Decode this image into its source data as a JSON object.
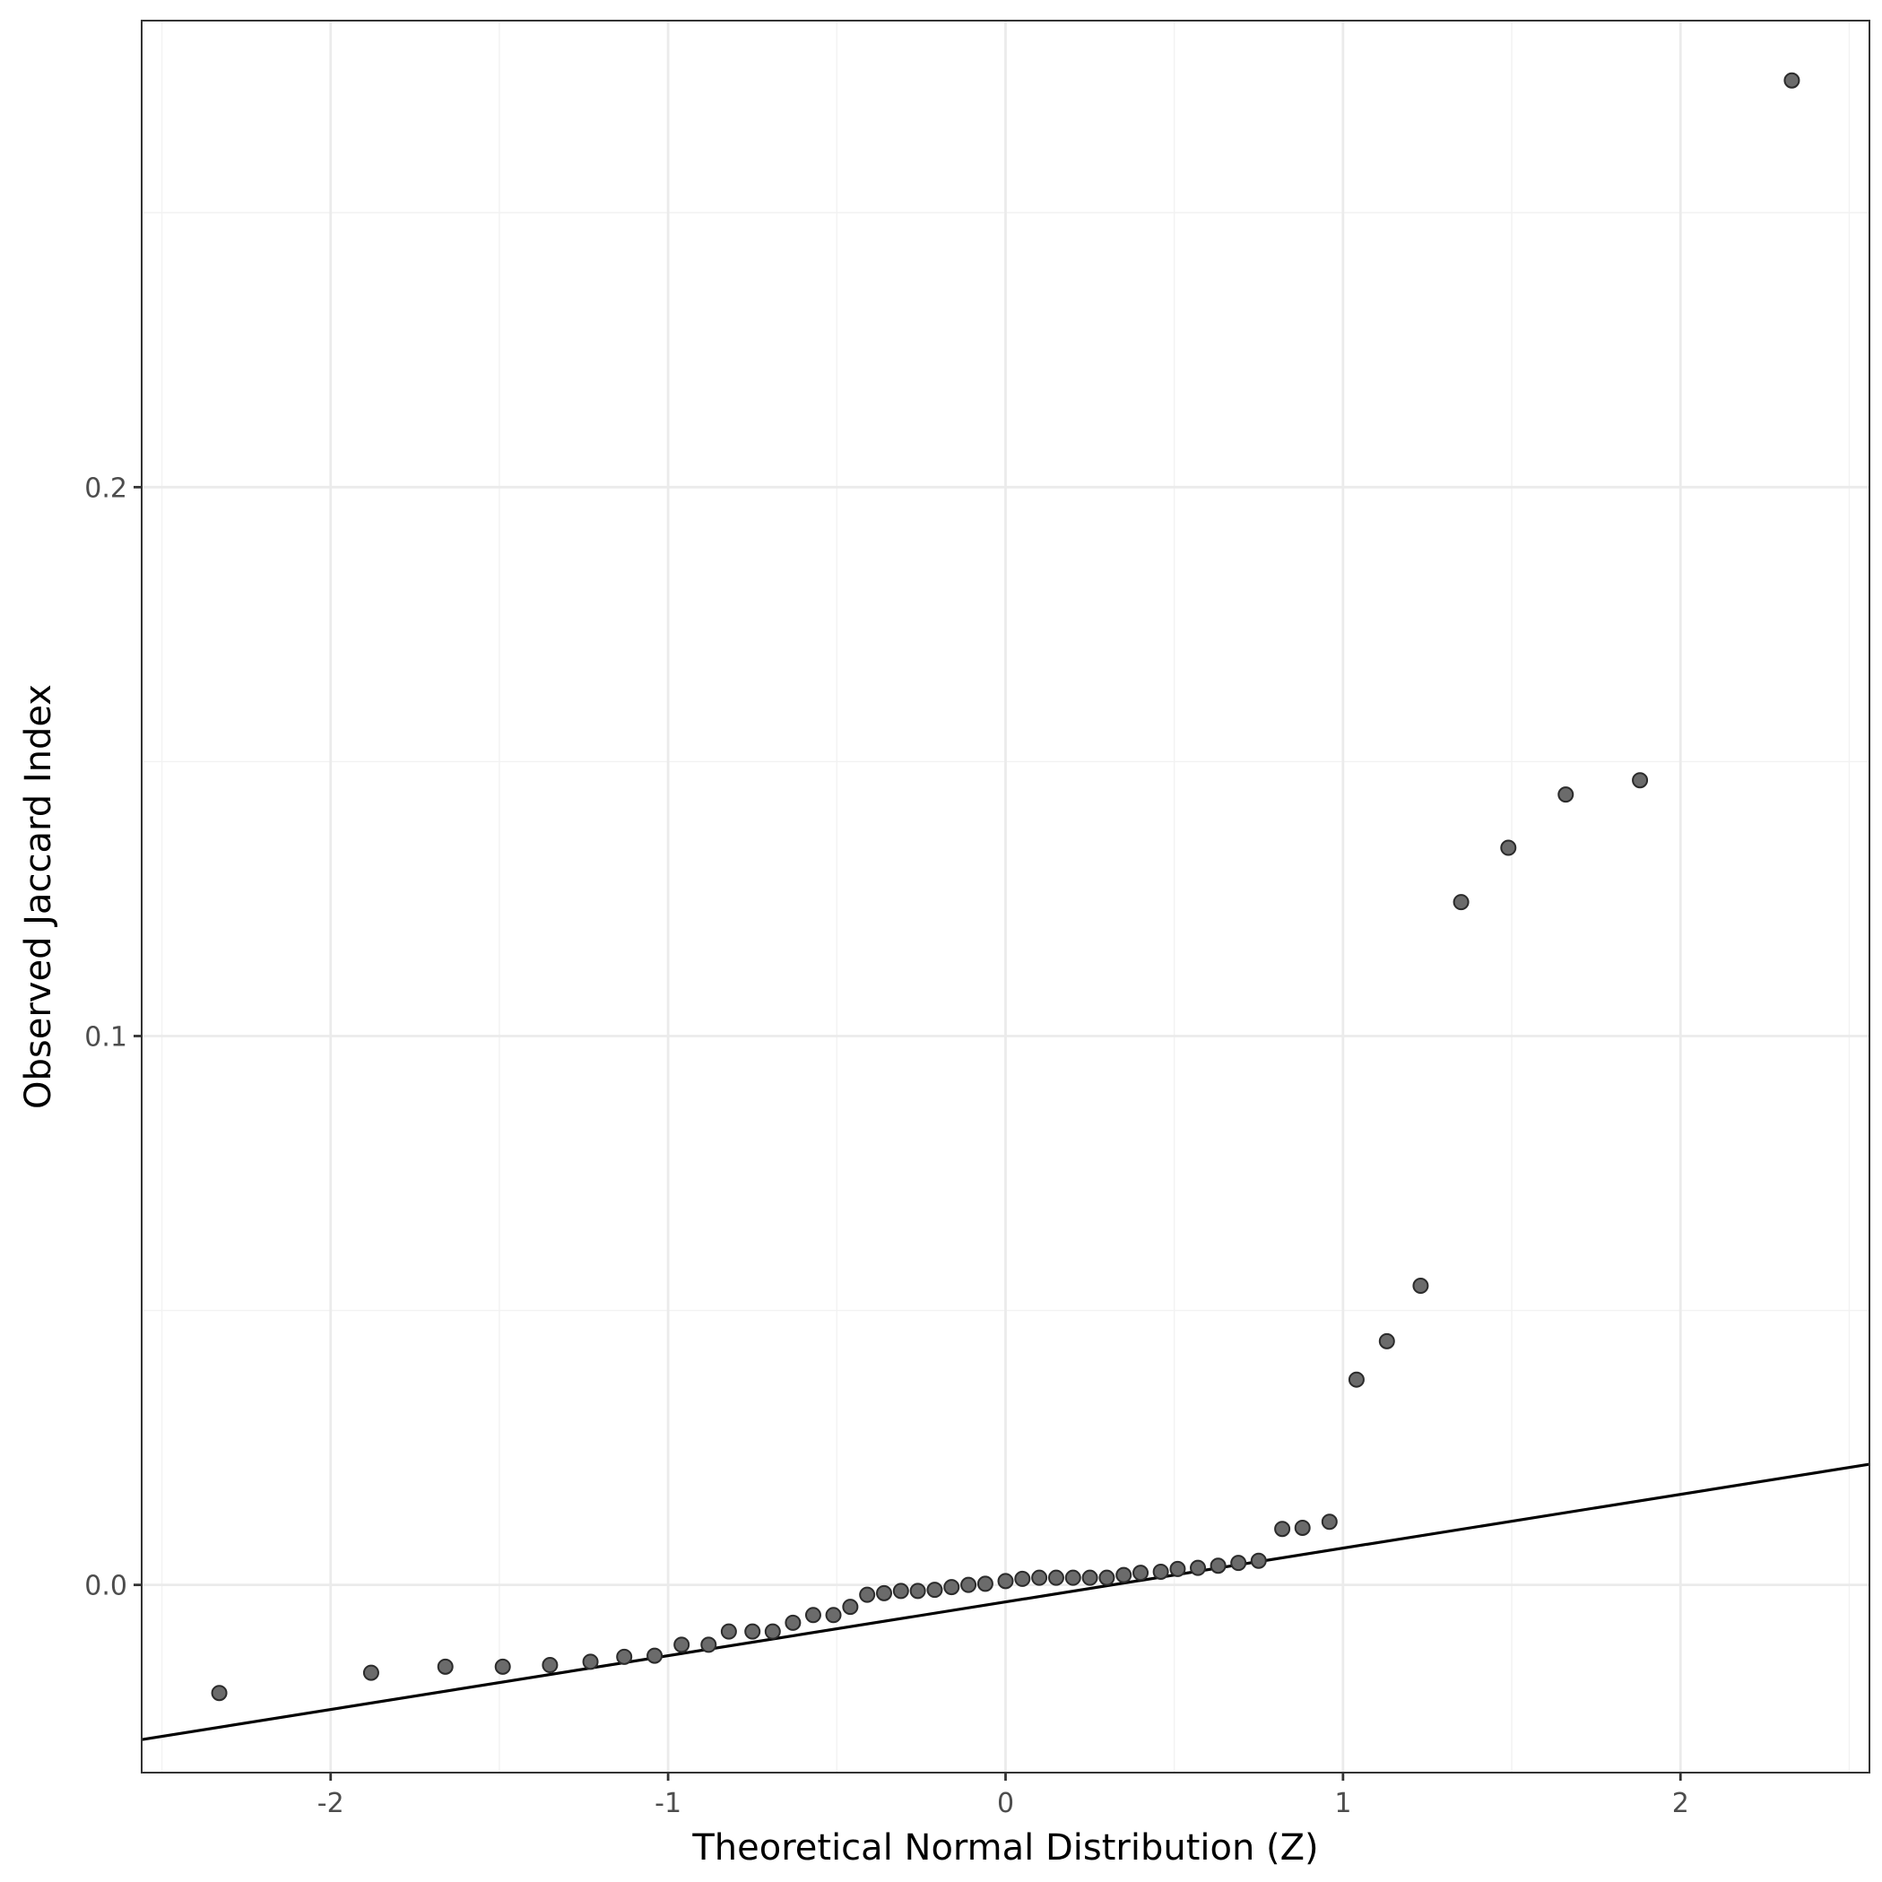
{
  "chart_data": {
    "type": "scatter",
    "title": "",
    "xlabel": "Theoretical Normal Distribution (Z)",
    "ylabel": "Observed Jaccard Index",
    "xlim": [
      -2.56,
      2.56
    ],
    "ylim": [
      -0.0342,
      0.285
    ],
    "x_ticks": [
      -2,
      -1,
      0,
      1,
      2
    ],
    "x_tick_labels": [
      "-2",
      "-1",
      "0",
      "1",
      "2"
    ],
    "y_ticks": [
      0.0,
      0.1,
      0.2
    ],
    "y_tick_labels": [
      "0.0",
      "0.1",
      "0.2"
    ],
    "grid": true,
    "legend": "none",
    "point_color": "#6b6b6b",
    "reference_line": {
      "intercept": -0.0031,
      "slope": 0.0098
    },
    "points": [
      {
        "x": -2.33,
        "y": -0.0197
      },
      {
        "x": -1.88,
        "y": -0.016
      },
      {
        "x": -1.66,
        "y": -0.0149
      },
      {
        "x": -1.49,
        "y": -0.0149
      },
      {
        "x": -1.35,
        "y": -0.0146
      },
      {
        "x": -1.23,
        "y": -0.014
      },
      {
        "x": -1.13,
        "y": -0.0131
      },
      {
        "x": -1.04,
        "y": -0.0129
      },
      {
        "x": -0.96,
        "y": -0.0109
      },
      {
        "x": -0.88,
        "y": -0.0109
      },
      {
        "x": -0.82,
        "y": -0.0085
      },
      {
        "x": -0.75,
        "y": -0.0085
      },
      {
        "x": -0.69,
        "y": -0.0085
      },
      {
        "x": -0.63,
        "y": -0.0069
      },
      {
        "x": -0.57,
        "y": -0.0055
      },
      {
        "x": -0.51,
        "y": -0.0055
      },
      {
        "x": -0.46,
        "y": -0.004
      },
      {
        "x": -0.41,
        "y": -0.0018
      },
      {
        "x": -0.36,
        "y": -0.0015
      },
      {
        "x": -0.31,
        "y": -0.0011
      },
      {
        "x": -0.26,
        "y": -0.0011
      },
      {
        "x": -0.21,
        "y": -0.0009
      },
      {
        "x": -0.16,
        "y": -0.0004
      },
      {
        "x": -0.11,
        "y": 0.0
      },
      {
        "x": -0.06,
        "y": 0.0002
      },
      {
        "x": 0.0,
        "y": 0.0007
      },
      {
        "x": 0.05,
        "y": 0.0011
      },
      {
        "x": 0.1,
        "y": 0.0013
      },
      {
        "x": 0.15,
        "y": 0.0013
      },
      {
        "x": 0.2,
        "y": 0.0013
      },
      {
        "x": 0.25,
        "y": 0.0013
      },
      {
        "x": 0.3,
        "y": 0.0013
      },
      {
        "x": 0.35,
        "y": 0.0018
      },
      {
        "x": 0.4,
        "y": 0.0022
      },
      {
        "x": 0.46,
        "y": 0.0024
      },
      {
        "x": 0.51,
        "y": 0.0029
      },
      {
        "x": 0.57,
        "y": 0.0031
      },
      {
        "x": 0.63,
        "y": 0.0035
      },
      {
        "x": 0.69,
        "y": 0.004
      },
      {
        "x": 0.75,
        "y": 0.0044
      },
      {
        "x": 0.82,
        "y": 0.0102
      },
      {
        "x": 0.88,
        "y": 0.0104
      },
      {
        "x": 0.96,
        "y": 0.0115
      },
      {
        "x": 1.04,
        "y": 0.0374
      },
      {
        "x": 1.13,
        "y": 0.0444
      },
      {
        "x": 1.23,
        "y": 0.0545
      },
      {
        "x": 1.35,
        "y": 0.1244
      },
      {
        "x": 1.49,
        "y": 0.1343
      },
      {
        "x": 1.66,
        "y": 0.144
      },
      {
        "x": 1.88,
        "y": 0.1466
      },
      {
        "x": 2.33,
        "y": 0.2741
      }
    ]
  }
}
